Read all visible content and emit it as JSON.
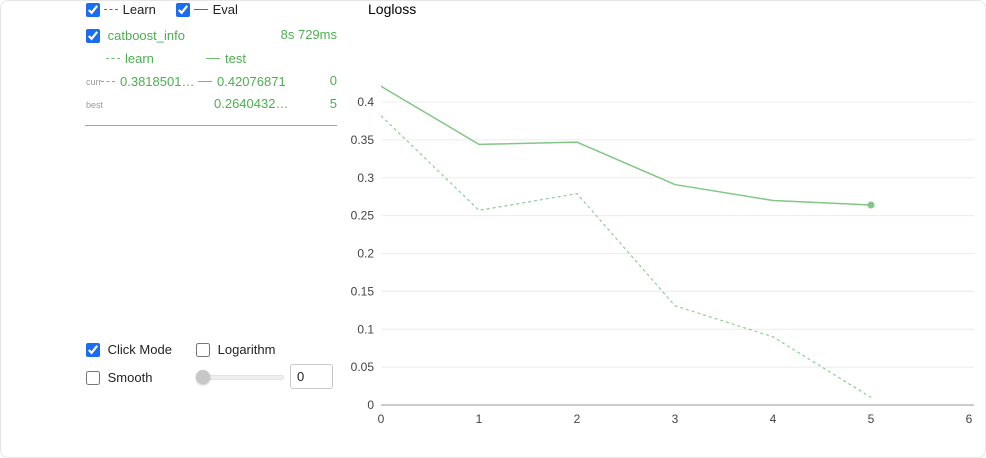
{
  "legend": {
    "learn_label": "Learn",
    "eval_label": "Eval"
  },
  "series_panel": {
    "name": "catboost_info",
    "time": "8s 729ms",
    "learn_label": "learn",
    "test_label": "test",
    "curr_label": "curr",
    "best_label": "best",
    "curr_learn_value": "0.3818501…",
    "curr_test_value": "0.42076871",
    "curr_iteration": "0",
    "best_test_value": "0.2640432…",
    "best_iteration": "5"
  },
  "controls": {
    "click_mode_label": "Click Mode",
    "logarithm_label": "Logarithm",
    "smooth_label": "Smooth",
    "smooth_value": "0"
  },
  "checks": {
    "learn": true,
    "eval": true,
    "series": true,
    "click_mode": true,
    "logarithm": false,
    "smooth": false
  },
  "colors": {
    "green_text": "#4caf50",
    "line_green": "#82c785",
    "grid": "#ececec",
    "axis": "#999999",
    "tick_text": "#444444"
  },
  "chart_data": {
    "type": "line",
    "title": "Logloss",
    "x": [
      0,
      1,
      2,
      3,
      4,
      5
    ],
    "series": [
      {
        "name": "learn",
        "style": "dashed",
        "color": "#8fcd92",
        "values": [
          0.3819,
          0.257,
          0.279,
          0.131,
          0.09,
          0.01
        ]
      },
      {
        "name": "test",
        "style": "solid",
        "color": "#82c785",
        "values": [
          0.4208,
          0.344,
          0.347,
          0.291,
          0.27,
          0.264
        ]
      }
    ],
    "xlabel": "",
    "ylabel": "",
    "xlim": [
      0,
      6.1
    ],
    "ylim": [
      0,
      0.43
    ],
    "xticks": [
      0,
      1,
      2,
      3,
      4,
      5,
      6
    ],
    "yticks": [
      0,
      0.05,
      0.1,
      0.15,
      0.2,
      0.25,
      0.3,
      0.35,
      0.4
    ],
    "grid": true,
    "legend_position": "none",
    "end_marker_series": "test"
  }
}
